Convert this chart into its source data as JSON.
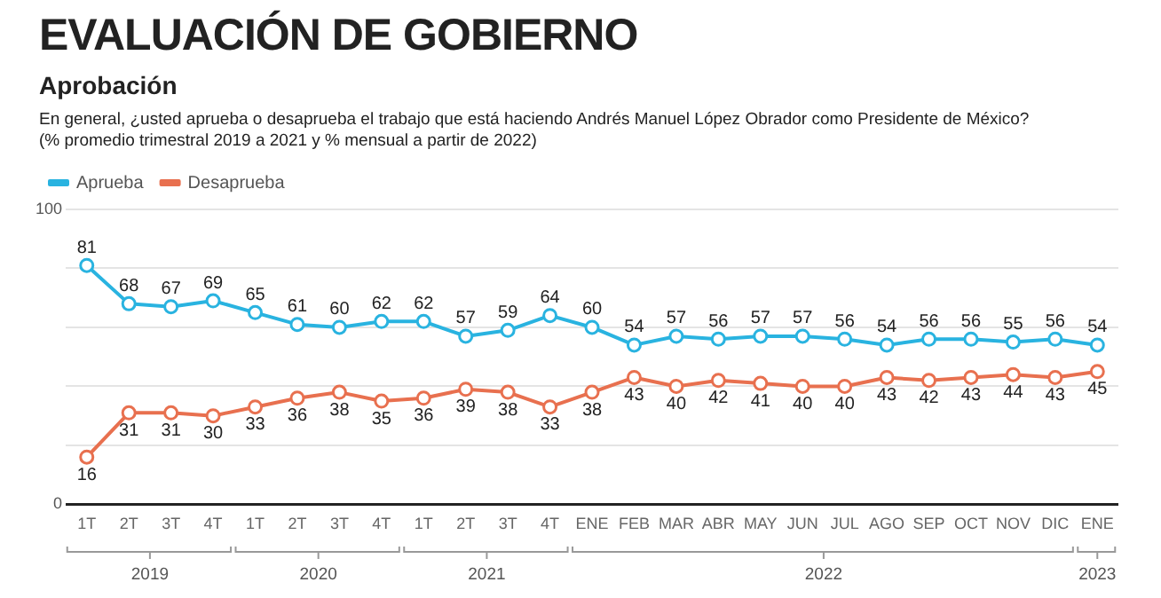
{
  "chart_data": {
    "type": "line",
    "title": "EVALUACIÓN DE GOBIERNO",
    "subtitle": "Aprobación",
    "annotations": [
      "En general, ¿usted aprueba o desaprueba el trabajo que está haciendo Andrés Manuel López Obrador como Presidente de México?",
      "(% promedio trimestral 2019 a 2021 y % mensual a partir de 2022)",
      "2019",
      "2020",
      "2021",
      "2022",
      "2023"
    ],
    "categories": [
      "1T",
      "2T",
      "3T",
      "4T",
      "1T",
      "2T",
      "3T",
      "4T",
      "1T",
      "2T",
      "3T",
      "4T",
      "ENE",
      "FEB",
      "MAR",
      "ABR",
      "MAY",
      "JUN",
      "JUL",
      "AGO",
      "SEP",
      "OCT",
      "NOV",
      "DIC",
      "ENE"
    ],
    "series": [
      {
        "name": "Aprueba",
        "color": "#29b3e0",
        "values": [
          81,
          68,
          67,
          69,
          65,
          61,
          60,
          62,
          62,
          57,
          59,
          64,
          60,
          54,
          57,
          56,
          57,
          57,
          56,
          54,
          56,
          56,
          55,
          56,
          54
        ]
      },
      {
        "name": "Desaprueba",
        "color": "#e8704f",
        "values": [
          16,
          31,
          31,
          30,
          33,
          36,
          38,
          35,
          36,
          39,
          38,
          33,
          38,
          43,
          40,
          42,
          41,
          40,
          40,
          43,
          42,
          43,
          44,
          43,
          45
        ]
      }
    ],
    "ylim": [
      0,
      100
    ],
    "yticks": [
      0,
      {
        "value": 20,
        "label": null
      },
      {
        "value": 40,
        "label": null
      },
      {
        "value": 60,
        "label": null
      },
      {
        "value": 80,
        "label": null
      },
      100
    ],
    "grid": "y",
    "legend": "top left",
    "marker": "circle",
    "line_style": "solid",
    "data_labels": true
  }
}
